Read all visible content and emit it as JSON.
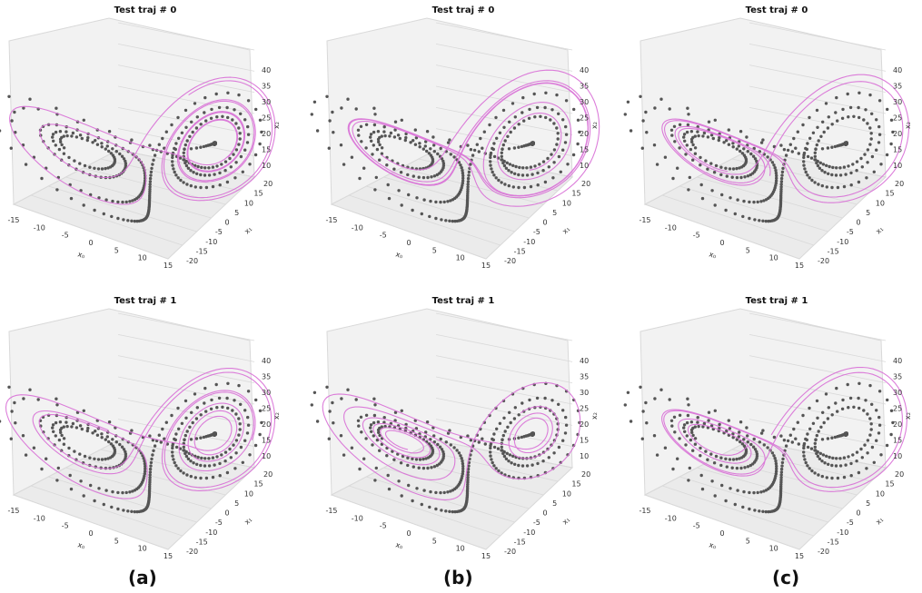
{
  "captions": [
    "(a)",
    "(b)",
    "(c)"
  ],
  "colors": {
    "points": "#555555",
    "trajectory": "#d86fd6",
    "pane": "#f2f2f2",
    "grid": "#d9d9d9",
    "text": "#111111"
  },
  "chart_data": [
    {
      "type": "scatter",
      "panel": "a-0",
      "title": "Test traj # 0",
      "xlabel": "x₀",
      "ylabel": "x₁",
      "zlabel": "x₂",
      "x_ticks": [
        -15,
        -10,
        -5,
        0,
        5,
        10,
        15
      ],
      "y_ticks": [
        -20,
        -15,
        -10,
        -5,
        0,
        5,
        10,
        15,
        20
      ],
      "z_ticks": [
        10,
        15,
        20,
        25,
        30,
        35,
        40
      ],
      "xlim": [
        -17,
        17
      ],
      "ylim": [
        -21,
        21
      ],
      "zlim": [
        5,
        42
      ],
      "series": [
        {
          "kind": "attractor points",
          "shape": "lorenz"
        },
        {
          "kind": "predicted trajectory line",
          "shape": "lorenz"
        }
      ]
    },
    {
      "type": "scatter",
      "panel": "b-0",
      "title": "Test traj # 0",
      "xlabel": "x₀",
      "ylabel": "x₁",
      "zlabel": "x₂",
      "x_ticks": [
        -15,
        -10,
        -5,
        0,
        5,
        10,
        15
      ],
      "y_ticks": [
        -20,
        -15,
        -10,
        -5,
        0,
        5,
        10,
        15,
        20
      ],
      "z_ticks": [
        10,
        15,
        20,
        25,
        30,
        35,
        40
      ],
      "xlim": [
        -17,
        17
      ],
      "ylim": [
        -21,
        21
      ],
      "zlim": [
        5,
        42
      ],
      "series": [
        {
          "kind": "attractor points",
          "shape": "lorenz"
        },
        {
          "kind": "predicted trajectory line",
          "shape": "lorenz"
        }
      ]
    },
    {
      "type": "scatter",
      "panel": "c-0",
      "title": "Test traj # 0",
      "xlabel": "x₀",
      "ylabel": "x₁",
      "zlabel": "x₂",
      "x_ticks": [
        -15,
        -10,
        -5,
        0,
        5,
        10,
        15
      ],
      "y_ticks": [
        -20,
        -15,
        -10,
        -5,
        0,
        5,
        10,
        15,
        20
      ],
      "z_ticks": [
        10,
        15,
        20,
        25,
        30,
        35,
        40
      ],
      "xlim": [
        -17,
        17
      ],
      "ylim": [
        -21,
        21
      ],
      "zlim": [
        5,
        42
      ],
      "series": [
        {
          "kind": "attractor points",
          "shape": "lorenz"
        },
        {
          "kind": "predicted trajectory line",
          "shape": "lorenz"
        }
      ]
    },
    {
      "type": "scatter",
      "panel": "a-1",
      "title": "Test traj # 1",
      "xlabel": "x₀",
      "ylabel": "x₁",
      "zlabel": "x₂",
      "x_ticks": [
        -15,
        -10,
        -5,
        0,
        5,
        10,
        15
      ],
      "y_ticks": [
        -20,
        -15,
        -10,
        -5,
        0,
        5,
        10,
        15,
        20
      ],
      "z_ticks": [
        10,
        15,
        20,
        25,
        30,
        35,
        40
      ],
      "xlim": [
        -17,
        17
      ],
      "ylim": [
        -21,
        21
      ],
      "zlim": [
        5,
        42
      ],
      "series": [
        {
          "kind": "attractor points",
          "shape": "lorenz"
        },
        {
          "kind": "predicted trajectory line",
          "shape": "lorenz"
        }
      ]
    },
    {
      "type": "scatter",
      "panel": "b-1",
      "title": "Test traj # 1",
      "xlabel": "x₀",
      "ylabel": "x₁",
      "zlabel": "x₂",
      "x_ticks": [
        -15,
        -10,
        -5,
        0,
        5,
        10,
        15
      ],
      "y_ticks": [
        -20,
        -15,
        -10,
        -5,
        0,
        5,
        10,
        15,
        20
      ],
      "z_ticks": [
        10,
        15,
        20,
        25,
        30,
        35,
        40
      ],
      "xlim": [
        -17,
        17
      ],
      "ylim": [
        -21,
        21
      ],
      "zlim": [
        5,
        42
      ],
      "series": [
        {
          "kind": "attractor points",
          "shape": "lorenz"
        },
        {
          "kind": "predicted trajectory line",
          "shape": "lorenz"
        }
      ]
    },
    {
      "type": "scatter",
      "panel": "c-1",
      "title": "Test traj # 1",
      "xlabel": "x₀",
      "ylabel": "x₁",
      "zlabel": "x₂",
      "x_ticks": [
        -15,
        -10,
        -5,
        0,
        5,
        10,
        15
      ],
      "y_ticks": [
        -20,
        -15,
        -10,
        -5,
        0,
        5,
        10,
        15,
        20
      ],
      "z_ticks": [
        10,
        15,
        20,
        25,
        30,
        35,
        40
      ],
      "xlim": [
        -17,
        17
      ],
      "ylim": [
        -21,
        21
      ],
      "zlim": [
        5,
        42
      ],
      "series": [
        {
          "kind": "attractor points",
          "shape": "lorenz"
        },
        {
          "kind": "predicted trajectory line",
          "shape": "lorenz"
        }
      ]
    }
  ]
}
